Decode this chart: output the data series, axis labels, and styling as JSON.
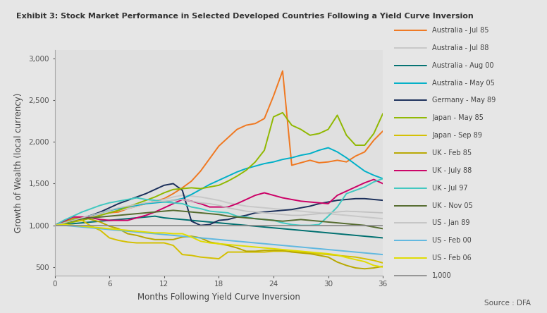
{
  "title": "Exhibit 3: Stock Market Performance in Selected Developed Countries Following a Yield Curve Inversion",
  "xlabel": "Months Following Yield Curve Inversion",
  "ylabel": "Growth of Wealth (local currency)",
  "source": "Source : DFA",
  "background_color": "#e6e6e6",
  "plot_background_color": "#e0e0e0",
  "xlim": [
    0,
    36
  ],
  "ylim": [
    400,
    3100
  ],
  "ytick_labels": [
    "500",
    "1,000",
    "1,500",
    "2,000",
    "2,500",
    "3,000"
  ],
  "yticks": [
    500,
    1000,
    1500,
    2000,
    2500,
    3000
  ],
  "xticks": [
    0,
    6,
    12,
    18,
    24,
    30,
    36
  ],
  "series": [
    {
      "label": "Australia - Jul 85",
      "color": "#f07820",
      "linewidth": 1.4,
      "values": [
        1000,
        1040,
        1080,
        1060,
        1100,
        1130,
        1150,
        1160,
        1200,
        1230,
        1260,
        1290,
        1320,
        1380,
        1450,
        1530,
        1650,
        1800,
        1950,
        2050,
        2150,
        2200,
        2220,
        2280,
        2550,
        2850,
        1720,
        1750,
        1780,
        1750,
        1760,
        1780,
        1760,
        1830,
        1880,
        2020,
        2130
      ]
    },
    {
      "label": "Australia - Jul 88",
      "color": "#c8c8c8",
      "linewidth": 1.4,
      "values": [
        1000,
        1040,
        1070,
        1090,
        1110,
        1130,
        1160,
        1180,
        1200,
        1230,
        1260,
        1290,
        1310,
        1340,
        1360,
        1350,
        1340,
        1320,
        1300,
        1270,
        1250,
        1230,
        1220,
        1210,
        1200,
        1190,
        1180,
        1170,
        1160,
        1150,
        1140,
        1130,
        1120,
        1110,
        1100,
        1090,
        1080
      ]
    },
    {
      "label": "Australia - Aug 00",
      "color": "#007070",
      "linewidth": 1.4,
      "values": [
        1000,
        1010,
        1020,
        1030,
        1040,
        1050,
        1060,
        1070,
        1080,
        1090,
        1100,
        1110,
        1090,
        1080,
        1070,
        1060,
        1050,
        1040,
        1030,
        1020,
        1010,
        1000,
        990,
        980,
        970,
        960,
        950,
        940,
        930,
        920,
        910,
        900,
        890,
        880,
        870,
        860,
        850
      ]
    },
    {
      "label": "Australia - May 05",
      "color": "#00b0c8",
      "linewidth": 1.4,
      "values": [
        1000,
        1030,
        1060,
        1090,
        1120,
        1150,
        1180,
        1200,
        1220,
        1240,
        1260,
        1270,
        1280,
        1300,
        1320,
        1370,
        1430,
        1490,
        1540,
        1590,
        1640,
        1680,
        1710,
        1740,
        1760,
        1790,
        1810,
        1840,
        1860,
        1900,
        1930,
        1880,
        1810,
        1730,
        1650,
        1600,
        1560
      ]
    },
    {
      "label": "Germany - May 89",
      "color": "#1a2e5a",
      "linewidth": 1.4,
      "values": [
        1000,
        1020,
        1050,
        1080,
        1120,
        1160,
        1210,
        1260,
        1300,
        1340,
        1380,
        1430,
        1480,
        1500,
        1420,
        1050,
        1000,
        1010,
        1060,
        1070,
        1100,
        1120,
        1150,
        1160,
        1170,
        1180,
        1190,
        1210,
        1230,
        1260,
        1280,
        1300,
        1310,
        1320,
        1320,
        1310,
        1300
      ]
    },
    {
      "label": "Japan - May 85",
      "color": "#90b800",
      "linewidth": 1.4,
      "values": [
        1000,
        1020,
        1040,
        1060,
        1090,
        1120,
        1150,
        1180,
        1220,
        1260,
        1300,
        1340,
        1390,
        1430,
        1440,
        1450,
        1440,
        1460,
        1480,
        1530,
        1590,
        1660,
        1760,
        1900,
        2300,
        2350,
        2200,
        2150,
        2080,
        2100,
        2150,
        2320,
        2080,
        1960,
        1960,
        2100,
        2340
      ]
    },
    {
      "label": "Japan - Sep 89",
      "color": "#d4c000",
      "linewidth": 1.4,
      "values": [
        1000,
        1050,
        1060,
        1060,
        990,
        940,
        850,
        820,
        800,
        790,
        790,
        790,
        790,
        760,
        650,
        640,
        620,
        610,
        600,
        680,
        680,
        680,
        680,
        680,
        690,
        690,
        690,
        680,
        670,
        660,
        650,
        640,
        630,
        620,
        600,
        580,
        550
      ]
    },
    {
      "label": "UK - Feb 85",
      "color": "#b8a800",
      "linewidth": 1.4,
      "values": [
        1000,
        1050,
        1080,
        1100,
        1070,
        1040,
        990,
        960,
        900,
        880,
        850,
        830,
        830,
        830,
        860,
        870,
        850,
        800,
        780,
        760,
        730,
        690,
        690,
        700,
        700,
        700,
        680,
        670,
        660,
        640,
        620,
        560,
        520,
        490,
        480,
        490,
        510
      ]
    },
    {
      "label": "UK - July 88",
      "color": "#cc0066",
      "linewidth": 1.4,
      "values": [
        1000,
        1050,
        1100,
        1100,
        1090,
        1070,
        1060,
        1060,
        1060,
        1090,
        1120,
        1160,
        1210,
        1260,
        1310,
        1290,
        1260,
        1220,
        1220,
        1220,
        1260,
        1310,
        1360,
        1390,
        1360,
        1330,
        1310,
        1290,
        1280,
        1270,
        1260,
        1360,
        1410,
        1460,
        1510,
        1550,
        1500
      ]
    },
    {
      "label": "UK - Jul 97",
      "color": "#40c8c0",
      "linewidth": 1.4,
      "values": [
        1000,
        1060,
        1110,
        1160,
        1200,
        1240,
        1270,
        1290,
        1310,
        1330,
        1310,
        1300,
        1280,
        1270,
        1260,
        1220,
        1200,
        1170,
        1160,
        1150,
        1110,
        1100,
        1080,
        1070,
        1060,
        1030,
        1010,
        1000,
        1000,
        1010,
        1110,
        1220,
        1380,
        1420,
        1460,
        1520,
        1560
      ]
    },
    {
      "label": "UK - Nov 05",
      "color": "#556b2f",
      "linewidth": 1.4,
      "values": [
        1000,
        1030,
        1060,
        1080,
        1090,
        1100,
        1110,
        1120,
        1130,
        1140,
        1150,
        1160,
        1170,
        1180,
        1170,
        1160,
        1150,
        1140,
        1130,
        1110,
        1100,
        1090,
        1080,
        1070,
        1060,
        1050,
        1060,
        1070,
        1060,
        1050,
        1040,
        1030,
        1020,
        1010,
        1000,
        980,
        960
      ]
    },
    {
      "label": "US - Jan 89",
      "color": "#c0c0c0",
      "linewidth": 1.2,
      "values": [
        1000,
        1030,
        1060,
        1090,
        1120,
        1150,
        1180,
        1210,
        1230,
        1250,
        1270,
        1280,
        1290,
        1300,
        1310,
        1290,
        1270,
        1260,
        1240,
        1210,
        1190,
        1170,
        1160,
        1150,
        1140,
        1130,
        1120,
        1120,
        1130,
        1140,
        1150,
        1160,
        1170,
        1165,
        1160,
        1155,
        1150
      ]
    },
    {
      "label": "US - Feb 00",
      "color": "#60b8e0",
      "linewidth": 1.4,
      "values": [
        1000,
        1000,
        990,
        980,
        970,
        960,
        950,
        940,
        930,
        920,
        910,
        900,
        890,
        880,
        870,
        860,
        850,
        840,
        830,
        820,
        810,
        800,
        790,
        780,
        770,
        760,
        750,
        740,
        730,
        720,
        710,
        700,
        690,
        680,
        670,
        660,
        650
      ]
    },
    {
      "label": "US - Feb 06",
      "color": "#e0dc00",
      "linewidth": 1.4,
      "values": [
        1000,
        1010,
        1000,
        990,
        980,
        970,
        960,
        950,
        940,
        930,
        920,
        910,
        910,
        900,
        900,
        860,
        810,
        790,
        780,
        770,
        760,
        750,
        740,
        730,
        720,
        710,
        700,
        690,
        680,
        670,
        660,
        645,
        615,
        590,
        565,
        520,
        500
      ]
    },
    {
      "label": "1,000",
      "color": "#888888",
      "linewidth": 1.2,
      "values": [
        1000,
        1000,
        1000,
        1000,
        1000,
        1000,
        1000,
        1000,
        1000,
        1000,
        1000,
        1000,
        1000,
        1000,
        1000,
        1000,
        1000,
        1000,
        1000,
        1000,
        1000,
        1000,
        1000,
        1000,
        1000,
        1000,
        1000,
        1000,
        1000,
        1000,
        1000,
        1000,
        1000,
        1000,
        1000,
        1000,
        1000
      ]
    }
  ]
}
